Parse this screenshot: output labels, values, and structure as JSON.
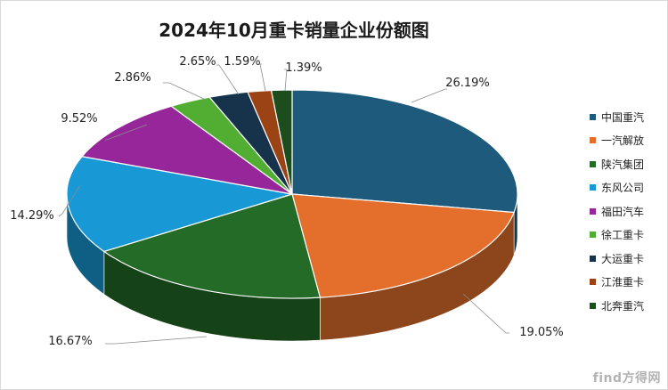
{
  "chart_data": {
    "type": "pie",
    "title": "2024年10月重卡销量企业份额图",
    "categories": [
      "中国重汽",
      "一汽解放",
      "陕汽集团",
      "东风公司",
      "福田汽车",
      "徐工重卡",
      "大运重卡",
      "江淮重卡",
      "北奔重汽"
    ],
    "values": [
      26.19,
      19.05,
      16.67,
      14.29,
      9.52,
      2.86,
      2.65,
      1.59,
      1.39
    ],
    "data_labels": [
      "26.19%",
      "19.05%",
      "16.67%",
      "14.29%",
      "9.52%",
      "2.86%",
      "2.65%",
      "1.59%",
      "1.39%"
    ],
    "colors": [
      "#1d5a7c",
      "#e46f2d",
      "#246b27",
      "#1899d5",
      "#96269a",
      "#52ae32",
      "#16334b",
      "#9b4314",
      "#1d4d1c"
    ],
    "style": "3d",
    "legend_position": "right"
  },
  "watermark": "find方得网"
}
